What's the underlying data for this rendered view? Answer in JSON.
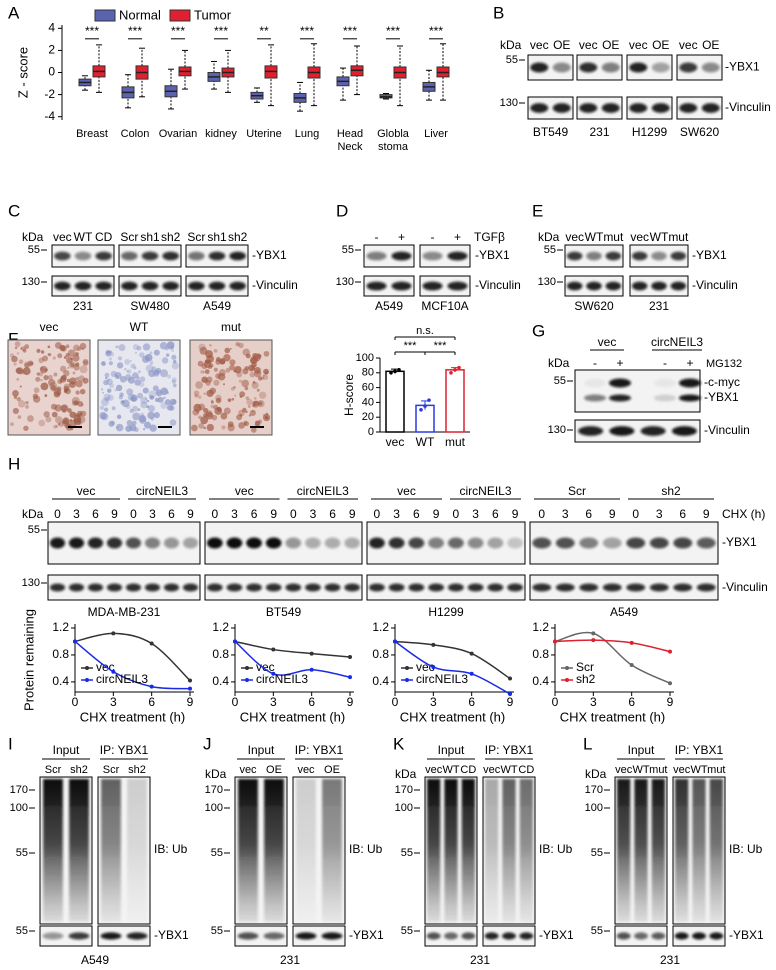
{
  "A": {
    "letter": "A",
    "ylabel": "Z - score",
    "ylim": [
      -4.3,
      4.3
    ],
    "yticks": [
      -4,
      -2,
      0,
      2,
      4
    ],
    "categories": [
      [
        "Breast"
      ],
      [
        "Colon"
      ],
      [
        "Ovarian"
      ],
      [
        "kidney"
      ],
      [
        "Uterine"
      ],
      [
        "Lung"
      ],
      [
        "Head",
        "Neck"
      ],
      [
        "Globla",
        "stoma"
      ],
      [
        "Liver"
      ]
    ],
    "significance": [
      "***",
      "***",
      "***",
      "***",
      "**",
      "***",
      "***",
      "***",
      "***"
    ],
    "series": [
      {
        "name": "Normal",
        "color": "#5b62b0",
        "values": [
          [
            -1.6,
            -1.2,
            -0.9,
            -0.6,
            -0.3
          ],
          [
            -3.2,
            -2.3,
            -1.8,
            -1.3,
            -0.2
          ],
          [
            -3.3,
            -2.2,
            -1.7,
            -1.2,
            0.3
          ],
          [
            -1.5,
            -0.8,
            -0.4,
            0,
            1.0
          ],
          [
            -2.7,
            -2.4,
            -2.1,
            -1.8,
            -1.4
          ],
          [
            -3.5,
            -2.7,
            -2.3,
            -1.9,
            -0.9
          ],
          [
            -2.5,
            -1.2,
            -0.8,
            -0.4,
            0.4
          ],
          [
            -2.4,
            -2.3,
            -2.2,
            -2.0,
            -1.9
          ],
          [
            -2.5,
            -1.7,
            -1.3,
            -0.9,
            0.2
          ]
        ]
      },
      {
        "name": "Tumor",
        "color": "#e0202e",
        "values": [
          [
            -1.8,
            -0.4,
            0.1,
            0.6,
            2.5
          ],
          [
            -2.2,
            -0.6,
            0,
            0.6,
            2.2
          ],
          [
            -1.5,
            -0.3,
            0.1,
            0.5,
            2.0
          ],
          [
            -1.8,
            -0.4,
            0,
            0.4,
            2.0
          ],
          [
            -3.0,
            -0.5,
            0.1,
            0.6,
            2.5
          ],
          [
            -3.0,
            -0.5,
            0,
            0.5,
            2.6
          ],
          [
            -2.0,
            -0.3,
            0.2,
            0.6,
            2.4
          ],
          [
            -3.0,
            -0.5,
            0,
            0.5,
            2.4
          ],
          [
            -2.5,
            -0.4,
            0,
            0.5,
            2.6
          ]
        ]
      }
    ]
  },
  "B": {
    "letter": "B",
    "kda": "kDa",
    "markers": [
      55,
      130
    ],
    "lanes": [
      [
        "vec",
        "OE"
      ],
      [
        "vec",
        "OE"
      ],
      [
        "vec",
        "OE"
      ],
      [
        "vec",
        "OE"
      ]
    ],
    "cells": [
      "BT549",
      "231",
      "H1299",
      "SW620"
    ],
    "proteins": [
      "-YBX1",
      "-Vinculin"
    ]
  },
  "C": {
    "letter": "C",
    "kda": "kDa",
    "markers": [
      55,
      130
    ],
    "lanes": [
      [
        "vec",
        "WT",
        "CD"
      ],
      [
        "Scr",
        "sh1",
        "sh2"
      ],
      [
        "Scr",
        "sh1",
        "sh2"
      ]
    ],
    "cells": [
      "231",
      "SW480",
      "A549"
    ],
    "proteins": [
      "-YBX1",
      "-Vinculin"
    ]
  },
  "D": {
    "letter": "D",
    "markers": [
      55,
      130
    ],
    "treatment": "TGFβ",
    "lanes": [
      [
        "-",
        "+"
      ],
      [
        "-",
        "+"
      ]
    ],
    "cells": [
      "A549",
      "MCF10A"
    ],
    "proteins": [
      "-YBX1",
      "-Vinculin"
    ]
  },
  "E": {
    "letter": "E",
    "kda": "kDa",
    "markers": [
      55,
      130
    ],
    "lanes": [
      [
        "vec",
        "WT",
        "mut"
      ],
      [
        "vec",
        "WT",
        "mut"
      ]
    ],
    "cells": [
      "SW620",
      "231"
    ],
    "proteins": [
      "-YBX1",
      "-Vinculin"
    ]
  },
  "F": {
    "letter": "F",
    "images": [
      "vec",
      "WT",
      "mut"
    ],
    "ylabel": "H-score",
    "ylim": [
      0,
      100
    ],
    "yticks": [
      0,
      20,
      40,
      60,
      80,
      100
    ],
    "categories": [
      "vec",
      "WT",
      "mut"
    ],
    "values": [
      82,
      36,
      84
    ],
    "errors": [
      3,
      6,
      3
    ],
    "points": [
      [
        80,
        82,
        84
      ],
      [
        30,
        35,
        43
      ],
      [
        80,
        84,
        87
      ]
    ],
    "colors": [
      "#000000",
      "#2a3ae0",
      "#e0202e"
    ],
    "significance": [
      "***",
      "***",
      "n.s."
    ]
  },
  "G": {
    "letter": "G",
    "kda": "kDa",
    "groups": [
      "vec",
      "circNEIL3"
    ],
    "lanes": [
      "-",
      "+",
      "-",
      "+"
    ],
    "treatment": "MG132",
    "markers": [
      55,
      130
    ],
    "proteins": [
      "-c-myc",
      "-YBX1",
      "-Vinculin"
    ]
  },
  "H": {
    "letter": "H",
    "kda": "kDa",
    "markers": [
      55,
      130
    ],
    "groups": [
      [
        "vec",
        "circNEIL3"
      ],
      [
        "vec",
        "circNEIL3"
      ],
      [
        "vec",
        "circNEIL3"
      ],
      [
        "Scr",
        "sh2"
      ]
    ],
    "times": [
      0,
      3,
      6,
      9
    ],
    "chx": "CHX (h)",
    "proteins": [
      "-YBX1",
      "-Vinculin"
    ],
    "cells": [
      "MDA-MB-231",
      "BT549",
      "H1299",
      "A549"
    ],
    "x": [
      0,
      3,
      6,
      9
    ],
    "xlim": [
      0,
      9
    ],
    "xticks": [
      0,
      3,
      6,
      9
    ],
    "ylim": [
      0.25,
      1.2
    ],
    "yticks": [
      0.4,
      0.8,
      1.2
    ],
    "xlabel": "CHX treatment (h)",
    "ylabel": "Protein remaining",
    "charts": [
      {
        "series": [
          {
            "name": "vec",
            "color": "#333333",
            "values": [
              1.0,
              1.12,
              0.97,
              0.42
            ]
          },
          {
            "name": "circNEIL3",
            "color": "#1a2ae6",
            "values": [
              1.0,
              0.55,
              0.33,
              0.3
            ]
          }
        ]
      },
      {
        "series": [
          {
            "name": "vec",
            "color": "#333333",
            "values": [
              1.0,
              0.88,
              0.82,
              0.77
            ]
          },
          {
            "name": "circNEIL3",
            "color": "#1a2ae6",
            "values": [
              1.0,
              0.52,
              0.58,
              0.47
            ]
          }
        ]
      },
      {
        "series": [
          {
            "name": "vec",
            "color": "#333333",
            "values": [
              1.0,
              0.95,
              0.82,
              0.45
            ]
          },
          {
            "name": "circNEIL3",
            "color": "#1a2ae6",
            "values": [
              1.0,
              0.62,
              0.52,
              0.22
            ]
          }
        ]
      },
      {
        "series": [
          {
            "name": "Scr",
            "color": "#666666",
            "values": [
              1.0,
              1.12,
              0.65,
              0.38
            ]
          },
          {
            "name": "sh2",
            "color": "#e0202e",
            "values": [
              1.0,
              1.02,
              0.98,
              0.85
            ]
          }
        ]
      }
    ]
  },
  "I": {
    "letter": "I",
    "markers": [
      170,
      100,
      55
    ],
    "bottom_marker": 55,
    "input": "Input",
    "ip": "IP: YBX1",
    "lanes": [
      [
        "Scr",
        "sh2"
      ],
      [
        "Scr",
        "sh2"
      ]
    ],
    "ib": "IB: Ub",
    "protein": "-YBX1",
    "cell": "A549"
  },
  "J": {
    "letter": "J",
    "kda": "kDa",
    "markers": [
      170,
      100,
      55
    ],
    "bottom_marker": 55,
    "input": "Input",
    "ip": "IP: YBX1",
    "lanes": [
      [
        "vec",
        "OE"
      ],
      [
        "vec",
        "OE"
      ]
    ],
    "ib": "IB: Ub",
    "protein": "-YBX1",
    "cell": "231"
  },
  "K": {
    "letter": "K",
    "kda": "kDa",
    "markers": [
      170,
      100,
      55
    ],
    "bottom_marker": 55,
    "input": "Input",
    "ip": "IP: YBX1",
    "lanes": [
      [
        "vec",
        "WT",
        "CD"
      ],
      [
        "vec",
        "WT",
        "CD"
      ]
    ],
    "ib": "IB: Ub",
    "protein": "-YBX1",
    "cell": "231"
  },
  "L": {
    "letter": "L",
    "kda": "kDa",
    "markers": [
      170,
      100,
      55
    ],
    "bottom_marker": 55,
    "input": "Input",
    "ip": "IP: YBX1",
    "lanes": [
      [
        "vec",
        "WT",
        "mut"
      ],
      [
        "vec",
        "WT",
        "mut"
      ]
    ],
    "ib": "IB: Ub",
    "protein": "-YBX1",
    "cell": "231"
  }
}
